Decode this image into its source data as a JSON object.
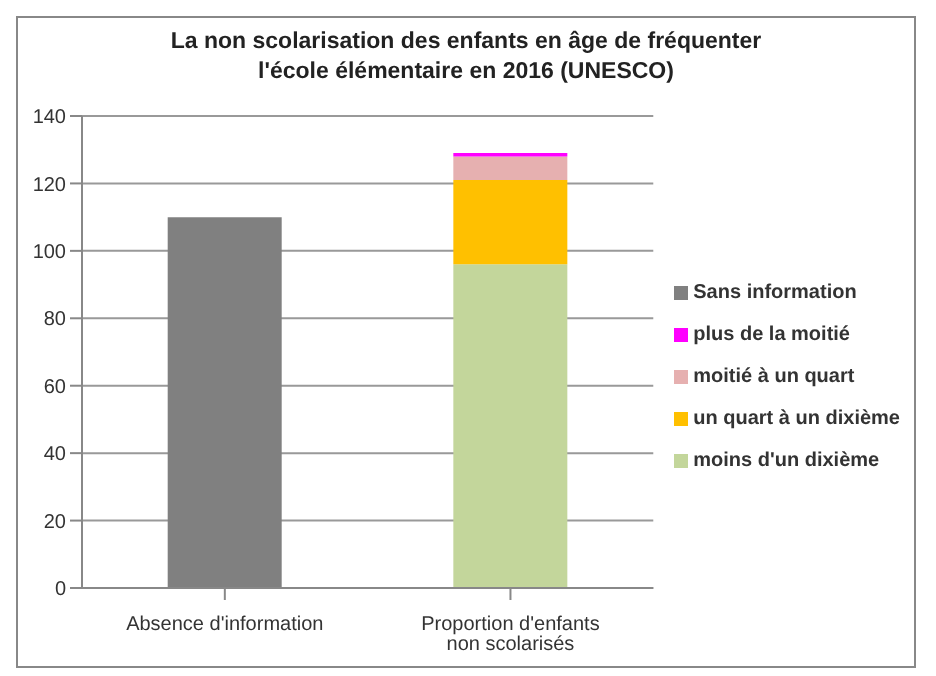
{
  "chart_data": {
    "type": "bar",
    "stacked": true,
    "title": "La non scolarisation des enfants en âge de fréquenter l'école élémentaire en 2016 (UNESCO)",
    "categories": [
      "Absence d'information",
      "Proportion d'enfants non scolarisés"
    ],
    "series": [
      {
        "name": "moins d'un dixième",
        "color": "#c3d69b",
        "values": [
          null,
          96
        ]
      },
      {
        "name": "un quart à un dixième",
        "color": "#ffc000",
        "values": [
          null,
          25
        ]
      },
      {
        "name": "moitié à un quart",
        "color": "#e6b0b0",
        "values": [
          null,
          7
        ]
      },
      {
        "name": "plus de la moitié",
        "color": "#ff00ff",
        "values": [
          null,
          1
        ]
      },
      {
        "name": "Sans information",
        "color": "#808080",
        "values": [
          110,
          null
        ]
      }
    ],
    "ylim": [
      0,
      140
    ],
    "yticks": [
      0,
      20,
      40,
      60,
      80,
      100,
      120,
      140
    ],
    "grid": "y",
    "legend": "right"
  }
}
